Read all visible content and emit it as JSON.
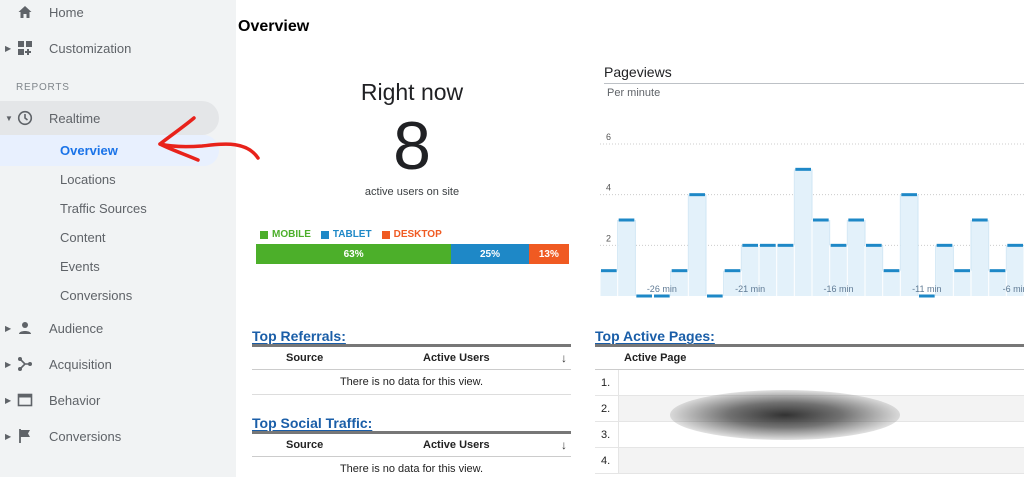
{
  "sidebar": {
    "home": "Home",
    "customization": "Customization",
    "reports_label": "REPORTS",
    "realtime": "Realtime",
    "realtime_subitems": [
      "Overview",
      "Locations",
      "Traffic Sources",
      "Content",
      "Events",
      "Conversions"
    ],
    "audience": "Audience",
    "acquisition": "Acquisition",
    "behavior": "Behavior",
    "conversions": "Conversions"
  },
  "main": {
    "title": "Overview",
    "right_now": {
      "title": "Right now",
      "count": "8",
      "subtitle": "active users on site"
    },
    "device_legend": [
      {
        "label": "MOBILE",
        "color": "#4caf2a"
      },
      {
        "label": "TABLET",
        "color": "#1e88c7"
      },
      {
        "label": "DESKTOP",
        "color": "#f05a22"
      }
    ],
    "device_bar": [
      {
        "label": "63%",
        "value": 63,
        "color": "#4caf2a"
      },
      {
        "label": "25%",
        "value": 25,
        "color": "#1e88c7"
      },
      {
        "label": "13%",
        "value": 13,
        "color": "#f05a22"
      }
    ],
    "pageviews": {
      "title": "Pageviews",
      "subtitle": "Per minute"
    },
    "top_referrals": {
      "title": "Top Referrals:",
      "col_source": "Source",
      "col_users": "Active Users",
      "empty": "There is no data for this view."
    },
    "top_social": {
      "title": "Top Social Traffic:",
      "col_source": "Source",
      "col_users": "Active Users",
      "empty": "There is no data for this view."
    },
    "top_pages": {
      "title": "Top Active Pages:",
      "col_page": "Active Page",
      "rows": [
        "1.",
        "2.",
        "3.",
        "4."
      ]
    }
  },
  "chart_data": {
    "type": "bar",
    "yticks": [
      "2",
      "4",
      "6"
    ],
    "ylim": [
      0,
      6
    ],
    "xtick_labels": [
      "-26 min",
      "-21 min",
      "-16 min",
      "-11 min",
      "-6 min"
    ],
    "xtick_positions": [
      4,
      9,
      14,
      19,
      24
    ],
    "values": [
      1,
      3,
      0,
      0,
      1,
      4,
      0,
      1,
      2,
      2,
      2,
      5,
      3,
      2,
      3,
      2,
      1,
      4,
      0,
      2,
      1,
      3,
      1,
      2
    ],
    "colors": {
      "line": "#1e88c7",
      "fill": "#e3f1fa",
      "grid": "#cccccc"
    }
  }
}
